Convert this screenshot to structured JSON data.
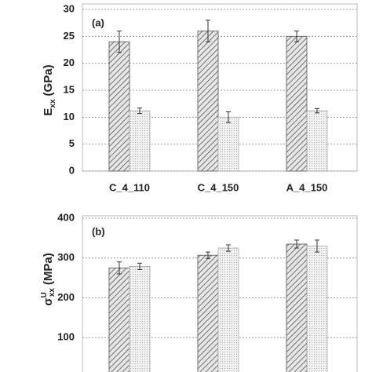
{
  "chart_data": [
    {
      "type": "bar",
      "panel_label": "(a)",
      "y_label": {
        "main": "E",
        "sub": "xx",
        "unit": "(GPa)"
      },
      "categories": [
        "C_4_110",
        "C_4_150",
        "A_4_150"
      ],
      "series": [
        {
          "color": "#555555",
          "pattern": "hatch",
          "values": [
            24,
            26,
            25
          ],
          "errors": [
            2,
            2,
            1
          ]
        },
        {
          "color": "#aaaaaa",
          "pattern": "dots",
          "values": [
            11.2,
            10,
            11.2
          ],
          "errors": [
            0.5,
            1,
            0.4
          ]
        }
      ],
      "ylim": [
        0,
        30
      ],
      "yticks": [
        0,
        5,
        10,
        15,
        20,
        25,
        30
      ],
      "grid": true
    },
    {
      "type": "bar",
      "panel_label": "(b)",
      "y_label": {
        "main": "σ",
        "sup": "U",
        "sub": "xx",
        "unit": "(MPa)"
      },
      "series": [
        {
          "color": "#555555",
          "pattern": "hatch",
          "values": [
            275,
            307,
            335
          ],
          "errors": [
            15,
            8,
            10
          ]
        },
        {
          "color": "#aaaaaa",
          "pattern": "dots",
          "values": [
            279,
            325,
            330
          ],
          "errors": [
            8,
            8,
            15
          ]
        }
      ],
      "ylim": [
        0,
        400
      ],
      "yticks": [
        100,
        200,
        300,
        400
      ],
      "grid": true
    }
  ]
}
